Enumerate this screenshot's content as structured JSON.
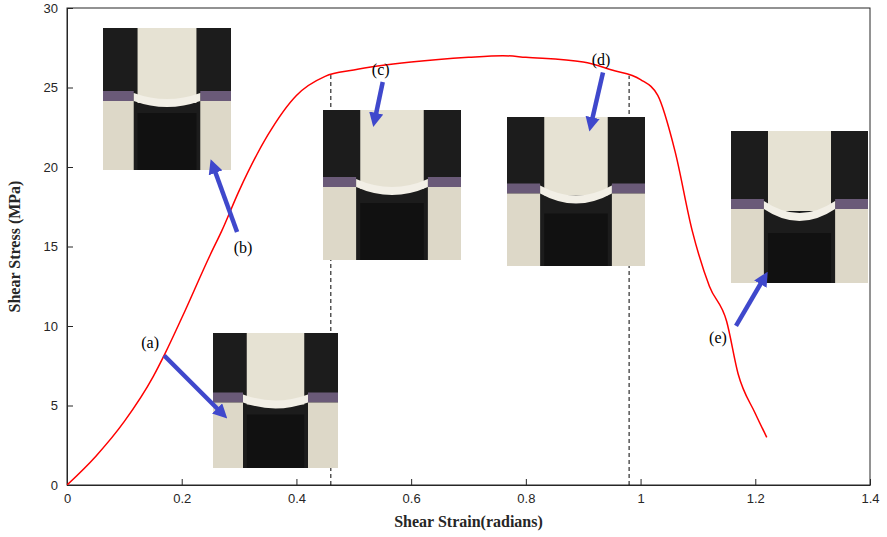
{
  "chart_data": {
    "type": "line",
    "x_label": "Shear Strain(radians)",
    "y_label": "Shear Stress (MPa)",
    "x": [
      0,
      0.05,
      0.1,
      0.15,
      0.17,
      0.2,
      0.25,
      0.27,
      0.3,
      0.35,
      0.4,
      0.45,
      0.5,
      0.6,
      0.7,
      0.76,
      0.8,
      0.9,
      0.95,
      1.0,
      1.03,
      1.06,
      1.09,
      1.12,
      1.15,
      1.17,
      1.2,
      1.22
    ],
    "values": [
      0,
      1.8,
      4,
      6.8,
      8.2,
      10.5,
      14.5,
      16,
      18.5,
      22,
      24.5,
      25.7,
      26.1,
      26.6,
      26.9,
      27.0,
      26.9,
      26.6,
      26.1,
      25.5,
      24.5,
      21,
      16,
      12.5,
      10.3,
      7,
      4.5,
      3
    ],
    "color": "#ff0000",
    "xlim": [
      0,
      1.4
    ],
    "xticks": [
      0,
      0.2,
      0.4,
      0.6,
      0.8,
      1,
      1.2,
      1.4
    ],
    "ylim": [
      0,
      30
    ],
    "yticks": [
      0,
      5,
      10,
      15,
      20,
      25,
      30
    ],
    "grid": false,
    "vlines": [
      0.46,
      0.98
    ],
    "annotations": [
      {
        "text": "(a)",
        "x": 0.145,
        "y": 8.9
      },
      {
        "text": "(b)",
        "x": 0.307,
        "y": 14.9
      },
      {
        "text": "(c)",
        "x": 0.547,
        "y": 26.1
      },
      {
        "text": "(d)",
        "x": 0.931,
        "y": 26.7
      },
      {
        "text": "(e)",
        "x": 1.135,
        "y": 9.25
      }
    ]
  }
}
